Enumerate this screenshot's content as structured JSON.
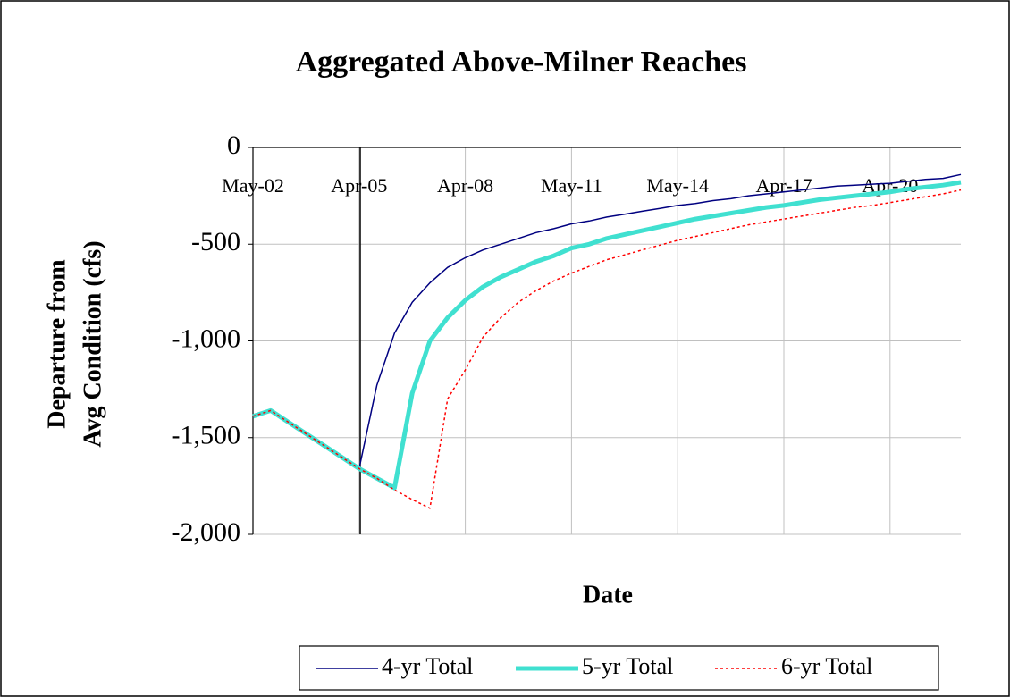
{
  "chart_data": {
    "type": "line",
    "title": "Aggregated Above-Milner Reaches",
    "x_label": "Date",
    "y_label": [
      "Departure from",
      "Avg Condition (cfs)"
    ],
    "x": [
      "May-02",
      null,
      null,
      null,
      null,
      null,
      "Apr-05",
      null,
      null,
      null,
      null,
      null,
      "Apr-08",
      null,
      null,
      null,
      null,
      null,
      "May-11",
      null,
      null,
      null,
      null,
      null,
      "May-14",
      null,
      null,
      null,
      null,
      null,
      "Apr-17",
      null,
      null,
      null,
      null,
      null,
      "Apr-20",
      null,
      null,
      null,
      null
    ],
    "series": [
      {
        "name": "4-yr Total",
        "color": "#000080",
        "line_style": "thin",
        "values": [
          -1390,
          -1360,
          -1420,
          -1480,
          -1540,
          -1600,
          -1660,
          -1230,
          -960,
          -800,
          -700,
          -620,
          -570,
          -530,
          -500,
          -470,
          -440,
          -420,
          -395,
          -380,
          -360,
          -345,
          -330,
          -315,
          -300,
          -290,
          -275,
          -265,
          -250,
          -240,
          -230,
          -220,
          -210,
          -200,
          -195,
          -190,
          -185,
          -175,
          -165,
          -160,
          -140
        ]
      },
      {
        "name": "5-yr Total",
        "color": "#40e0d0",
        "line_style": "thick",
        "values": [
          -1390,
          -1360,
          -1420,
          -1480,
          -1540,
          -1600,
          -1660,
          -1710,
          -1760,
          -1270,
          -1000,
          -880,
          -790,
          -720,
          -670,
          -630,
          -590,
          -560,
          -520,
          -500,
          -470,
          -450,
          -430,
          -410,
          -390,
          -370,
          -355,
          -340,
          -325,
          -310,
          -300,
          -285,
          -270,
          -260,
          -250,
          -240,
          -230,
          -215,
          -205,
          -195,
          -180
        ]
      },
      {
        "name": "6-yr Total",
        "color": "#ff0000",
        "line_style": "dotted",
        "values": [
          -1390,
          -1360,
          -1420,
          -1480,
          -1540,
          -1600,
          -1660,
          -1710,
          -1770,
          -1820,
          -1865,
          -1300,
          -1150,
          -980,
          -880,
          -800,
          -740,
          -690,
          -650,
          -615,
          -580,
          -555,
          -530,
          -505,
          -480,
          -460,
          -440,
          -420,
          -400,
          -385,
          -370,
          -355,
          -340,
          -325,
          -310,
          -300,
          -285,
          -270,
          -255,
          -240,
          -220
        ]
      }
    ],
    "ylim": [
      -2000,
      0
    ],
    "yticks": [
      0,
      -500,
      {
        "value": -1000,
        "label": "-1,000"
      },
      {
        "value": -1500,
        "label": "-1,500"
      },
      {
        "value": -2000,
        "label": "-2,000"
      }
    ],
    "grid": true,
    "legend": "bottom"
  }
}
